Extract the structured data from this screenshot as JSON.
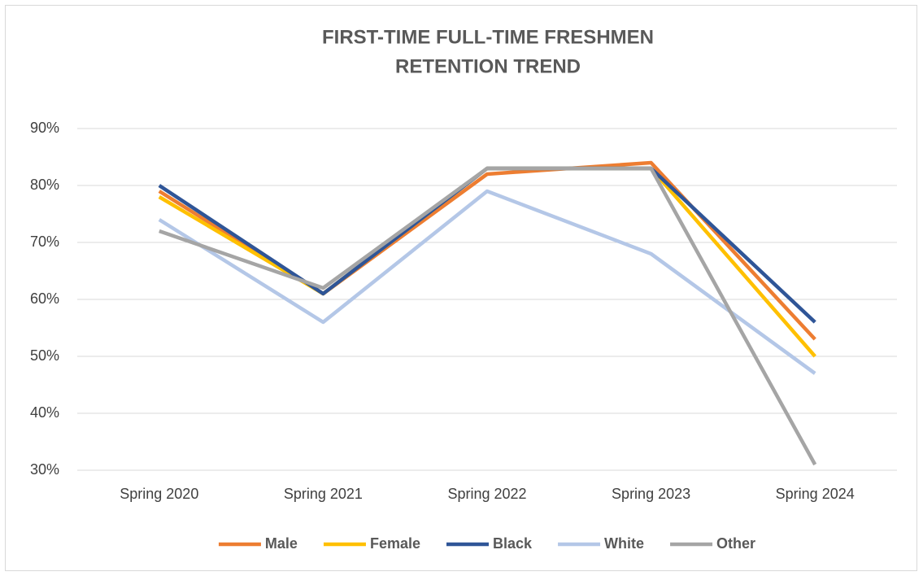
{
  "chart_data": {
    "type": "line",
    "title": [
      "FIRST-TIME FULL-TIME FRESHMEN",
      "RETENTION TREND"
    ],
    "categories": [
      "Spring 2020",
      "Spring 2021",
      "Spring 2022",
      "Spring 2023",
      "Spring 2024"
    ],
    "series": [
      {
        "name": "Male",
        "color": "#ed7d31",
        "values": [
          79,
          61,
          82,
          84,
          53
        ]
      },
      {
        "name": "Female",
        "color": "#ffc000",
        "values": [
          78,
          61,
          83,
          83,
          50
        ]
      },
      {
        "name": "Black",
        "color": "#2f5597",
        "values": [
          80,
          61,
          83,
          83,
          56
        ]
      },
      {
        "name": "White",
        "color": "#b4c7e7",
        "values": [
          74,
          56,
          79,
          68,
          47
        ]
      },
      {
        "name": "Other",
        "color": "#a5a5a5",
        "values": [
          72,
          62,
          83,
          83,
          31
        ]
      }
    ],
    "ylim": [
      30,
      90
    ],
    "yticks": [
      {
        "value": 30,
        "label": "30%"
      },
      {
        "value": 40,
        "label": "40%"
      },
      {
        "value": 50,
        "label": "50%"
      },
      {
        "value": 60,
        "label": "60%"
      },
      {
        "value": 70,
        "label": "70%"
      },
      {
        "value": 80,
        "label": "80%"
      },
      {
        "value": 90,
        "label": "90%"
      }
    ],
    "grid": true,
    "legend": "bottom"
  }
}
